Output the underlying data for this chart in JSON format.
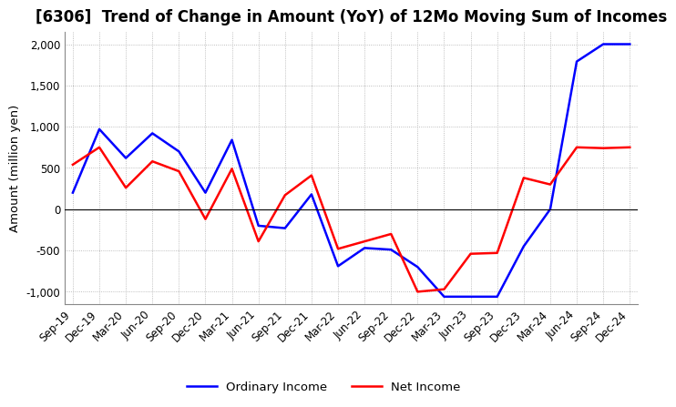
{
  "title": "[6306]  Trend of Change in Amount (YoY) of 12Mo Moving Sum of Incomes",
  "ylabel": "Amount (million yen)",
  "title_fontsize": 12,
  "label_fontsize": 9.5,
  "tick_fontsize": 8.5,
  "background_color": "#ffffff",
  "grid_color": "#aaaaaa",
  "ordinary_income_color": "#0000ff",
  "net_income_color": "#ff0000",
  "x_labels": [
    "Sep-19",
    "Dec-19",
    "Mar-20",
    "Jun-20",
    "Sep-20",
    "Dec-20",
    "Mar-21",
    "Jun-21",
    "Sep-21",
    "Dec-21",
    "Mar-22",
    "Jun-22",
    "Sep-22",
    "Dec-22",
    "Mar-23",
    "Jun-23",
    "Sep-23",
    "Dec-23",
    "Mar-24",
    "Jun-24",
    "Sep-24",
    "Dec-24"
  ],
  "ordinary_income": [
    200,
    970,
    620,
    920,
    700,
    200,
    840,
    -200,
    -230,
    180,
    -690,
    -470,
    -490,
    -700,
    -1060,
    -1060,
    -1060,
    -450,
    0,
    1790,
    2000,
    2000
  ],
  "net_income": [
    540,
    750,
    260,
    580,
    460,
    -120,
    490,
    -390,
    170,
    410,
    -480,
    -390,
    -300,
    -1000,
    -970,
    -540,
    -530,
    380,
    300,
    750,
    740,
    750
  ],
  "ylim": [
    -1150,
    2150
  ],
  "yticks": [
    -1000,
    -500,
    0,
    500,
    1000,
    1500,
    2000
  ]
}
